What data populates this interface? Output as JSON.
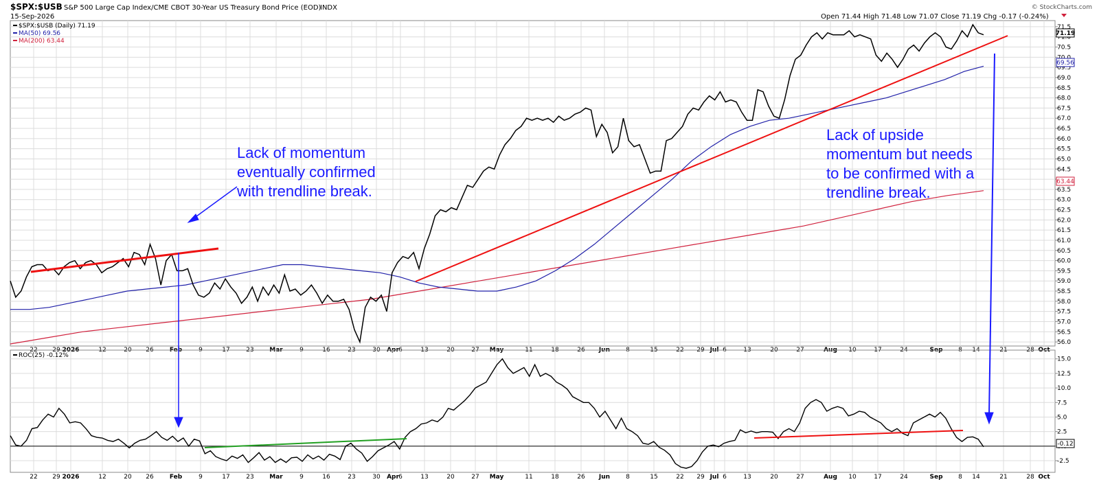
{
  "header": {
    "symbol": "$SPX:$USB",
    "description": "S&P 500 Large Cap Index/CME CBOT 30-Year US Treasury Bond Price (EOD)",
    "exchange": "INDX",
    "date": "15-Sep-2026",
    "ohlc": "Open 71.44 High 71.48 Low 71.07 Close 71.19 Chg -0.17 (-0.24%)",
    "watermark": "© StockCharts.com"
  },
  "legend": {
    "price": "$SPX:$USB (Daily) 71.19",
    "ma50": "MA(50) 69.56",
    "ma200": "MA(200) 63.44",
    "roc": "ROC(25) -0.12%"
  },
  "annotations": {
    "left_line1": "Lack of momentum",
    "left_line2": "eventually confirmed",
    "left_line3": "with  trendline break.",
    "right_line1": "Lack of upside",
    "right_line2": "momentum but needs",
    "right_line3": "to be confirmed with a",
    "right_line4": "trendline break."
  },
  "colors": {
    "price": "#000000",
    "ma50": "#1f1fa8",
    "ma200": "#d0203c",
    "trendline_red": "#ee1111",
    "trendline_green": "#22a022",
    "arrow": "#1a1aff",
    "text_blue": "#1a1aff",
    "grid": "#dcdcdc",
    "background": "#ffffff"
  },
  "chart_data": [
    {
      "type": "line",
      "panel": "price",
      "x_tick_labels": [
        "22",
        "29",
        "2026",
        "12",
        "20",
        "26",
        "Feb",
        "9",
        "17",
        "23",
        "Mar",
        "9",
        "16",
        "23",
        "30",
        "Apr",
        "6",
        "13",
        "20",
        "27",
        "May",
        "11",
        "18",
        "26",
        "Jun",
        "8",
        "15",
        "22",
        "29",
        "Jul",
        "6",
        "13",
        "20",
        "27",
        "Aug",
        "10",
        "17",
        "24",
        "Sep",
        "8",
        "14",
        "21",
        "28",
        "Oct"
      ],
      "y_tick_labels": [
        "56.0",
        "56.5",
        "57.0",
        "57.5",
        "58.0",
        "58.5",
        "59.0",
        "59.5",
        "60.0",
        "60.5",
        "61.0",
        "61.5",
        "62.0",
        "62.5",
        "63.0",
        "63.5",
        "64.0",
        "64.5",
        "65.0",
        "65.5",
        "66.0",
        "66.5",
        "67.0",
        "67.5",
        "68.0",
        "68.5",
        "69.0",
        "69.5",
        "70.0",
        "70.5",
        "71.0",
        "71.5"
      ],
      "ylim": [
        55.8,
        71.8
      ],
      "series": [
        {
          "name": "$SPX:$USB",
          "values": [
            59.0,
            58.2,
            58.5,
            59.2,
            59.7,
            59.8,
            59.8,
            59.5,
            59.6,
            59.3,
            59.7,
            59.9,
            60.0,
            59.6,
            59.9,
            60.0,
            59.8,
            59.4,
            59.6,
            59.7,
            59.9,
            60.1,
            59.7,
            60.4,
            60.3,
            59.8,
            60.8,
            60.1,
            58.8,
            60.0,
            60.3,
            59.5,
            59.5,
            59.6,
            58.8,
            58.3,
            58.2,
            58.4,
            58.9,
            58.6,
            59.1,
            58.7,
            58.4,
            57.9,
            58.2,
            58.7,
            58.0,
            58.7,
            58.3,
            58.8,
            58.4,
            59.3,
            58.5,
            58.6,
            58.3,
            58.5,
            58.8,
            58.4,
            57.9,
            58.3,
            58.0,
            58.0,
            58.1,
            57.6,
            56.6,
            56.0,
            57.7,
            58.2,
            58.0,
            58.3,
            57.5,
            59.4,
            59.9,
            60.2,
            60.1,
            60.4,
            59.6,
            60.6,
            61.3,
            62.2,
            62.5,
            62.4,
            62.6,
            62.5,
            63.1,
            63.7,
            63.6,
            64.0,
            64.4,
            64.6,
            64.5,
            65.2,
            65.7,
            66.0,
            66.4,
            66.6,
            67.0,
            66.9,
            67.0,
            66.9,
            67.0,
            66.8,
            67.1,
            66.9,
            67.0,
            67.2,
            67.3,
            67.5,
            67.4,
            66.1,
            66.7,
            66.3,
            65.3,
            65.6,
            67.0,
            65.9,
            65.6,
            65.7,
            65.0,
            64.3,
            64.4,
            64.4,
            65.9,
            66.0,
            66.3,
            66.6,
            67.2,
            67.5,
            67.4,
            67.8,
            68.1,
            67.9,
            68.3,
            67.8,
            67.9,
            67.8,
            67.3,
            66.9,
            66.9,
            68.4,
            68.3,
            67.6,
            67.1,
            67.0,
            67.9,
            69.1,
            69.9,
            70.1,
            70.6,
            71.0,
            71.2,
            70.9,
            71.2,
            71.1,
            71.1,
            71.1,
            71.3,
            71.0,
            71.1,
            71.0,
            70.9,
            70.1,
            69.8,
            70.2,
            69.9,
            69.5,
            69.9,
            70.4,
            70.6,
            70.3,
            70.7,
            71.0,
            71.2,
            71.0,
            70.5,
            70.4,
            70.8,
            71.3,
            71.0,
            71.6,
            71.2,
            71.1
          ]
        },
        {
          "name": "MA(50)",
          "values": [
            57.6,
            57.6,
            57.7,
            57.9,
            58.1,
            58.3,
            58.5,
            58.6,
            58.7,
            58.8,
            59.0,
            59.2,
            59.4,
            59.6,
            59.8,
            59.8,
            59.7,
            59.6,
            59.5,
            59.4,
            59.2,
            58.9,
            58.7,
            58.6,
            58.5,
            58.5,
            58.7,
            59.0,
            59.5,
            60.1,
            60.8,
            61.6,
            62.4,
            63.2,
            64.0,
            64.9,
            65.6,
            66.2,
            66.6,
            66.9,
            67.0,
            67.2,
            67.4,
            67.6,
            67.8,
            68.0,
            68.3,
            68.6,
            68.9,
            69.3,
            69.56
          ]
        },
        {
          "name": "MA(200)",
          "values": [
            55.9,
            56.2,
            56.5,
            56.7,
            56.9,
            57.1,
            57.3,
            57.5,
            57.7,
            57.9,
            58.1,
            58.4,
            58.7,
            59.0,
            59.3,
            59.6,
            59.9,
            60.2,
            60.5,
            60.8,
            61.1,
            61.4,
            61.7,
            62.1,
            62.5,
            62.9,
            63.2,
            63.44
          ]
        }
      ]
    },
    {
      "type": "line",
      "panel": "indicator",
      "y_tick_labels": [
        "-2.5",
        "0.0",
        "2.5",
        "5.0",
        "7.5",
        "10.0",
        "12.5",
        "15.0"
      ],
      "ylim": [
        -4.5,
        16.5
      ],
      "series": [
        {
          "name": "ROC(25)",
          "values": [
            1.8,
            0.2,
            0.0,
            1.0,
            3.0,
            3.2,
            4.5,
            5.5,
            5.0,
            6.5,
            5.5,
            4.0,
            4.2,
            4.0,
            3.0,
            1.8,
            1.5,
            1.4,
            1.0,
            0.8,
            1.2,
            0.5,
            -0.3,
            0.5,
            1.0,
            1.2,
            1.8,
            2.5,
            1.5,
            1.0,
            1.7,
            0.8,
            1.4,
            0.0,
            1.2,
            0.9,
            -1.3,
            -0.8,
            -1.8,
            -2.2,
            -2.5,
            -1.7,
            -2.1,
            -1.5,
            -2.8,
            -2.0,
            -1.1,
            -2.4,
            -1.8,
            -2.8,
            -2.2,
            -2.8,
            -2.0,
            -1.9,
            -2.6,
            -1.5,
            -2.2,
            -1.7,
            -2.4,
            -1.4,
            -1.7,
            -2.3,
            0.0,
            0.5,
            -0.5,
            -1.2,
            -2.6,
            -1.8,
            -0.8,
            -0.3,
            0.2,
            0.8,
            -0.5,
            1.5,
            2.5,
            3.0,
            3.8,
            4.0,
            4.5,
            4.2,
            5.0,
            6.5,
            6.2,
            7.0,
            7.8,
            8.8,
            10.0,
            10.5,
            11.0,
            12.5,
            14.0,
            15.0,
            13.5,
            12.5,
            13.0,
            13.5,
            12.0,
            14.0,
            12.0,
            12.5,
            12.0,
            11.0,
            10.5,
            9.8,
            8.5,
            8.0,
            7.5,
            7.5,
            6.5,
            5.0,
            6.0,
            4.5,
            3.0,
            4.8,
            3.0,
            2.5,
            1.8,
            0.5,
            0.3,
            0.8,
            -0.2,
            -0.7,
            -1.5,
            -3.0,
            -3.6,
            -3.8,
            -3.5,
            -2.5,
            -1.0,
            0.0,
            0.2,
            -0.1,
            0.5,
            0.8,
            1.0,
            2.8,
            2.3,
            2.6,
            2.3,
            2.5,
            2.5,
            2.4,
            1.3,
            2.5,
            3.0,
            2.5,
            4.0,
            6.5,
            7.5,
            8.0,
            7.5,
            6.0,
            6.5,
            6.8,
            6.5,
            5.2,
            5.5,
            6.0,
            5.8,
            5.0,
            4.5,
            4.0,
            3.0,
            2.5,
            3.0,
            2.2,
            1.8,
            4.0,
            4.5,
            5.0,
            5.5,
            5.0,
            5.8,
            4.8,
            3.0,
            1.5,
            0.8,
            1.5,
            1.6,
            1.2,
            -0.12
          ]
        }
      ]
    }
  ]
}
